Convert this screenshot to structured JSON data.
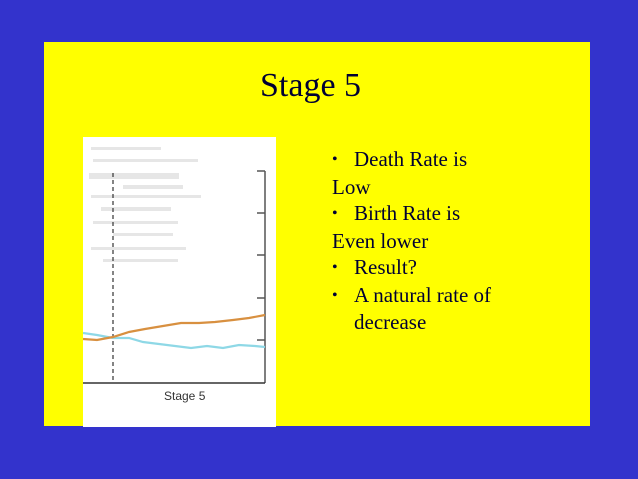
{
  "slide": {
    "title": "Stage 5",
    "bullets": [
      {
        "marker": "•",
        "text": "Death Rate is"
      },
      {
        "marker": "",
        "text": "Low"
      },
      {
        "marker": "•",
        "text": "Birth Rate is"
      },
      {
        "marker": "",
        "text": "Even lower"
      },
      {
        "marker": "•",
        "text": "Result?"
      },
      {
        "marker": "•",
        "text": "A natural rate of"
      },
      {
        "marker": "",
        "text": "decrease",
        "continuation": true
      }
    ]
  },
  "figure": {
    "caption": "Stage 5",
    "line_colors": {
      "death_rate": "#d89040",
      "birth_rate": "#8ed8e6"
    }
  },
  "colors": {
    "background": "#3333cc",
    "panel": "#ffff00",
    "text": "#000033"
  }
}
